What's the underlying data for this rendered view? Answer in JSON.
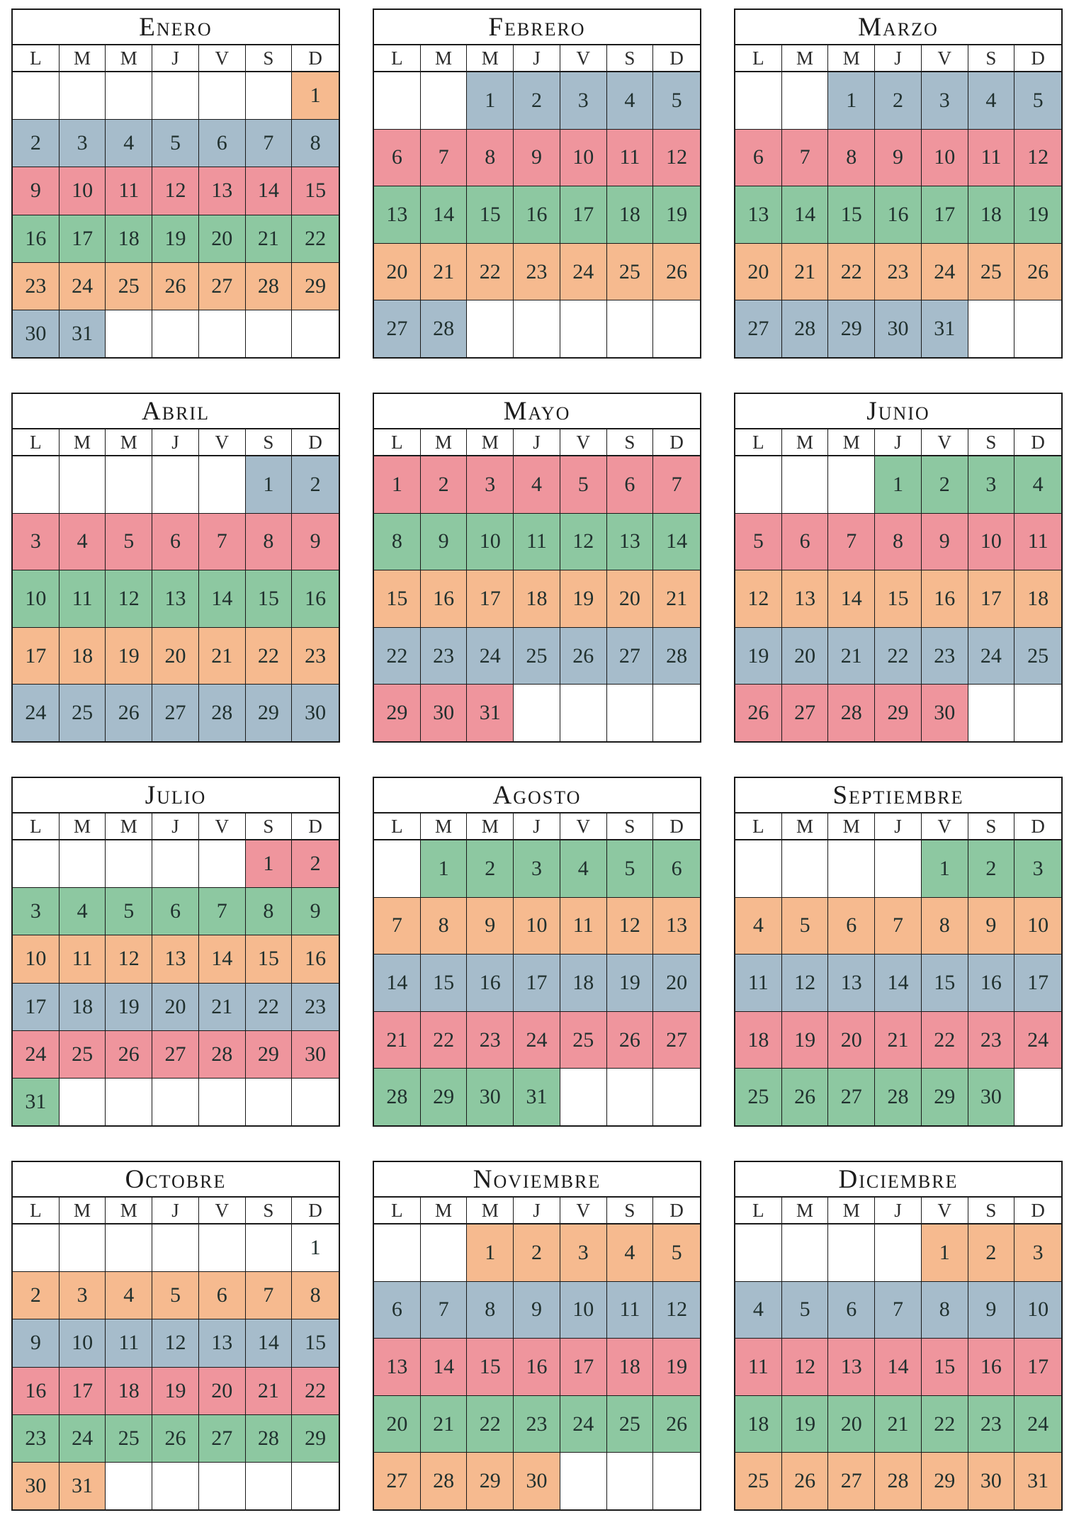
{
  "page": {
    "background": "#ffffff"
  },
  "colors": {
    "blue": "#a6bccb",
    "pink": "#ef959d",
    "green": "#8dc8a1",
    "orange": "#f6ba8f",
    "white": "#ffffff"
  },
  "day_headers": [
    "L",
    "M",
    "M",
    "J",
    "V",
    "S",
    "D"
  ],
  "months": [
    {
      "name": "Enero",
      "weeks": [
        {
          "color": "orange",
          "days": [
            "",
            "",
            "",
            "",
            "",
            "",
            "1"
          ]
        },
        {
          "color": "blue",
          "days": [
            "2",
            "3",
            "4",
            "5",
            "6",
            "7",
            "8"
          ]
        },
        {
          "color": "pink",
          "days": [
            "9",
            "10",
            "11",
            "12",
            "13",
            "14",
            "15"
          ]
        },
        {
          "color": "green",
          "days": [
            "16",
            "17",
            "18",
            "19",
            "20",
            "21",
            "22"
          ]
        },
        {
          "color": "orange",
          "days": [
            "23",
            "24",
            "25",
            "26",
            "27",
            "28",
            "29"
          ]
        },
        {
          "color": "blue",
          "days": [
            "30",
            "31",
            "",
            "",
            "",
            "",
            ""
          ]
        }
      ]
    },
    {
      "name": "Febrero",
      "weeks": [
        {
          "color": "blue",
          "days": [
            "",
            "",
            "1",
            "2",
            "3",
            "4",
            "5"
          ]
        },
        {
          "color": "pink",
          "days": [
            "6",
            "7",
            "8",
            "9",
            "10",
            "11",
            "12"
          ]
        },
        {
          "color": "green",
          "days": [
            "13",
            "14",
            "15",
            "16",
            "17",
            "18",
            "19"
          ]
        },
        {
          "color": "orange",
          "days": [
            "20",
            "21",
            "22",
            "23",
            "24",
            "25",
            "26"
          ]
        },
        {
          "color": "blue",
          "days": [
            "27",
            "28",
            "",
            "",
            "",
            "",
            ""
          ]
        }
      ]
    },
    {
      "name": "Marzo",
      "weeks": [
        {
          "color": "blue",
          "days": [
            "",
            "",
            "1",
            "2",
            "3",
            "4",
            "5"
          ]
        },
        {
          "color": "pink",
          "days": [
            "6",
            "7",
            "8",
            "9",
            "10",
            "11",
            "12"
          ]
        },
        {
          "color": "green",
          "days": [
            "13",
            "14",
            "15",
            "16",
            "17",
            "18",
            "19"
          ]
        },
        {
          "color": "orange",
          "days": [
            "20",
            "21",
            "22",
            "23",
            "24",
            "25",
            "26"
          ]
        },
        {
          "color": "blue",
          "days": [
            "27",
            "28",
            "29",
            "30",
            "31",
            "",
            ""
          ]
        }
      ]
    },
    {
      "name": "Abril",
      "weeks": [
        {
          "color": "blue",
          "days": [
            "",
            "",
            "",
            "",
            "",
            "1",
            "2"
          ]
        },
        {
          "color": "pink",
          "days": [
            "3",
            "4",
            "5",
            "6",
            "7",
            "8",
            "9"
          ]
        },
        {
          "color": "green",
          "days": [
            "10",
            "11",
            "12",
            "13",
            "14",
            "15",
            "16"
          ]
        },
        {
          "color": "orange",
          "days": [
            "17",
            "18",
            "19",
            "20",
            "21",
            "22",
            "23"
          ]
        },
        {
          "color": "blue",
          "days": [
            "24",
            "25",
            "26",
            "27",
            "28",
            "29",
            "30"
          ]
        }
      ]
    },
    {
      "name": "Mayo",
      "weeks": [
        {
          "color": "pink",
          "days": [
            "1",
            "2",
            "3",
            "4",
            "5",
            "6",
            "7"
          ]
        },
        {
          "color": "green",
          "days": [
            "8",
            "9",
            "10",
            "11",
            "12",
            "13",
            "14"
          ]
        },
        {
          "color": "orange",
          "days": [
            "15",
            "16",
            "17",
            "18",
            "19",
            "20",
            "21"
          ]
        },
        {
          "color": "blue",
          "days": [
            "22",
            "23",
            "24",
            "25",
            "26",
            "27",
            "28"
          ]
        },
        {
          "color": "pink",
          "days": [
            "29",
            "30",
            "31",
            "",
            "",
            "",
            ""
          ]
        }
      ]
    },
    {
      "name": "Junio",
      "weeks": [
        {
          "color": "green",
          "days": [
            "",
            "",
            "",
            "1",
            "2",
            "3",
            "4"
          ]
        },
        {
          "color": "pink",
          "days": [
            "5",
            "6",
            "7",
            "8",
            "9",
            "10",
            "11"
          ]
        },
        {
          "color": "orange",
          "days": [
            "12",
            "13",
            "14",
            "15",
            "16",
            "17",
            "18"
          ]
        },
        {
          "color": "blue",
          "days": [
            "19",
            "20",
            "21",
            "22",
            "23",
            "24",
            "25"
          ]
        },
        {
          "color": "pink",
          "days": [
            "26",
            "27",
            "28",
            "29",
            "30",
            "",
            ""
          ]
        }
      ]
    },
    {
      "name": "Julio",
      "weeks": [
        {
          "color": "pink",
          "days": [
            "",
            "",
            "",
            "",
            "",
            "1",
            "2"
          ]
        },
        {
          "color": "green",
          "days": [
            "3",
            "4",
            "5",
            "6",
            "7",
            "8",
            "9"
          ]
        },
        {
          "color": "orange",
          "days": [
            "10",
            "11",
            "12",
            "13",
            "14",
            "15",
            "16"
          ]
        },
        {
          "color": "blue",
          "days": [
            "17",
            "18",
            "19",
            "20",
            "21",
            "22",
            "23"
          ]
        },
        {
          "color": "pink",
          "days": [
            "24",
            "25",
            "26",
            "27",
            "28",
            "29",
            "30"
          ]
        },
        {
          "color": "green",
          "days": [
            "31",
            "",
            "",
            "",
            "",
            "",
            ""
          ]
        }
      ]
    },
    {
      "name": "Agosto",
      "weeks": [
        {
          "color": "green",
          "days": [
            "",
            "1",
            "2",
            "3",
            "4",
            "5",
            "6"
          ]
        },
        {
          "color": "orange",
          "days": [
            "7",
            "8",
            "9",
            "10",
            "11",
            "12",
            "13"
          ]
        },
        {
          "color": "blue",
          "days": [
            "14",
            "15",
            "16",
            "17",
            "18",
            "19",
            "20"
          ]
        },
        {
          "color": "pink",
          "days": [
            "21",
            "22",
            "23",
            "24",
            "25",
            "26",
            "27"
          ]
        },
        {
          "color": "green",
          "days": [
            "28",
            "29",
            "30",
            "31",
            "",
            "",
            ""
          ]
        }
      ]
    },
    {
      "name": "Septiembre",
      "weeks": [
        {
          "color": "green",
          "days": [
            "",
            "",
            "",
            "",
            "1",
            "2",
            "3"
          ]
        },
        {
          "color": "orange",
          "days": [
            "4",
            "5",
            "6",
            "7",
            "8",
            "9",
            "10"
          ]
        },
        {
          "color": "blue",
          "days": [
            "11",
            "12",
            "13",
            "14",
            "15",
            "16",
            "17"
          ]
        },
        {
          "color": "pink",
          "days": [
            "18",
            "19",
            "20",
            "21",
            "22",
            "23",
            "24"
          ]
        },
        {
          "color": "green",
          "days": [
            "25",
            "26",
            "27",
            "28",
            "29",
            "30",
            ""
          ]
        }
      ]
    },
    {
      "name": "Octobre",
      "weeks": [
        {
          "color": "white",
          "days": [
            "",
            "",
            "",
            "",
            "",
            "",
            "1"
          ]
        },
        {
          "color": "orange",
          "days": [
            "2",
            "3",
            "4",
            "5",
            "6",
            "7",
            "8"
          ]
        },
        {
          "color": "blue",
          "days": [
            "9",
            "10",
            "11",
            "12",
            "13",
            "14",
            "15"
          ]
        },
        {
          "color": "pink",
          "days": [
            "16",
            "17",
            "18",
            "19",
            "20",
            "21",
            "22"
          ]
        },
        {
          "color": "green",
          "days": [
            "23",
            "24",
            "25",
            "26",
            "27",
            "28",
            "29"
          ]
        },
        {
          "color": "orange",
          "days": [
            "30",
            "31",
            "",
            "",
            "",
            "",
            ""
          ]
        }
      ]
    },
    {
      "name": "Noviembre",
      "weeks": [
        {
          "color": "orange",
          "days": [
            "",
            "",
            "1",
            "2",
            "3",
            "4",
            "5"
          ]
        },
        {
          "color": "blue",
          "days": [
            "6",
            "7",
            "8",
            "9",
            "10",
            "11",
            "12"
          ]
        },
        {
          "color": "pink",
          "days": [
            "13",
            "14",
            "15",
            "16",
            "17",
            "18",
            "19"
          ]
        },
        {
          "color": "green",
          "days": [
            "20",
            "21",
            "22",
            "23",
            "24",
            "25",
            "26"
          ]
        },
        {
          "color": "orange",
          "days": [
            "27",
            "28",
            "29",
            "30",
            "",
            "",
            ""
          ]
        }
      ]
    },
    {
      "name": "Diciembre",
      "weeks": [
        {
          "color": "orange",
          "days": [
            "",
            "",
            "",
            "",
            "1",
            "2",
            "3"
          ]
        },
        {
          "color": "blue",
          "days": [
            "4",
            "5",
            "6",
            "7",
            "8",
            "9",
            "10"
          ]
        },
        {
          "color": "pink",
          "days": [
            "11",
            "12",
            "13",
            "14",
            "15",
            "16",
            "17"
          ]
        },
        {
          "color": "green",
          "days": [
            "18",
            "19",
            "20",
            "21",
            "22",
            "23",
            "24"
          ]
        },
        {
          "color": "orange",
          "days": [
            "25",
            "26",
            "27",
            "28",
            "29",
            "30",
            "31"
          ]
        }
      ]
    }
  ]
}
